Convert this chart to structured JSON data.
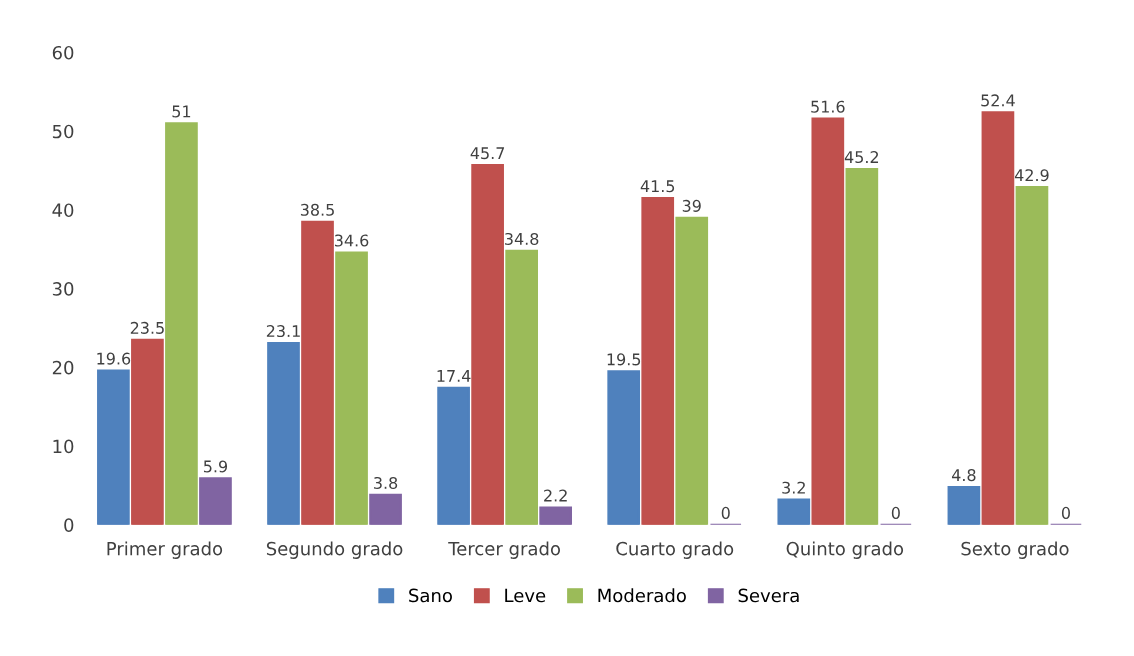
{
  "chart_data": {
    "type": "bar",
    "categories": [
      "Primer grado",
      "Segundo grado",
      "Tercer grado",
      "Cuarto grado",
      "Quinto grado",
      "Sexto grado"
    ],
    "series": [
      {
        "name": "Sano",
        "color": "#4f81bd",
        "values": [
          19.6,
          23.1,
          17.4,
          19.5,
          3.2,
          4.8
        ]
      },
      {
        "name": "Leve",
        "color": "#c0504d",
        "values": [
          23.5,
          38.5,
          45.7,
          41.5,
          51.6,
          52.4
        ]
      },
      {
        "name": "Moderado",
        "color": "#9bbb59",
        "values": [
          51,
          34.6,
          34.8,
          39,
          45.2,
          42.9
        ]
      },
      {
        "name": "Severa",
        "color": "#8064a2",
        "values": [
          5.9,
          3.8,
          2.2,
          0,
          0,
          0
        ]
      }
    ],
    "ylim": [
      0,
      60
    ],
    "yticks": [
      0,
      10,
      20,
      30,
      40,
      50,
      60
    ],
    "data_labels": true,
    "legend": "bottom",
    "grid": false
  }
}
